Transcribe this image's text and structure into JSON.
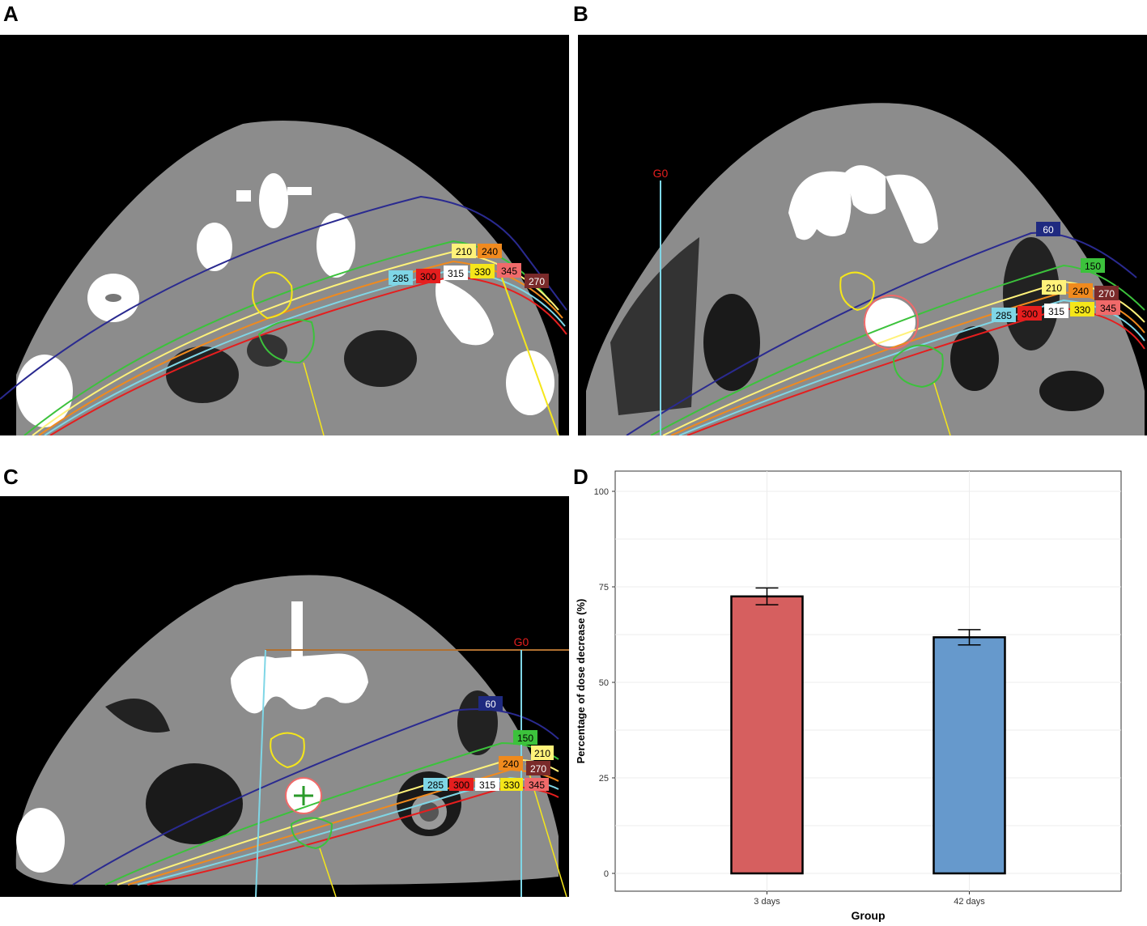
{
  "panels": {
    "a": {
      "letter": "A"
    },
    "b": {
      "letter": "B",
      "gantry_label": "G0"
    },
    "c": {
      "letter": "C",
      "gantry_label": "G0"
    },
    "d": {
      "letter": "D"
    }
  },
  "isodose_colors": {
    "60": "#1f2a80",
    "150": "#3cc23c",
    "210": "#fff27a",
    "240": "#f08a1e",
    "270": "#7a2a2a",
    "285": "#7fd6e6",
    "300": "#e51e1e",
    "315": "#ffffff",
    "330": "#f5e61a",
    "345": "#f06a6a"
  },
  "isodose_labels_a": [
    "210",
    "240",
    "285",
    "300",
    "315",
    "330",
    "345",
    "270"
  ],
  "isodose_labels_b": [
    "60",
    "150",
    "210",
    "240",
    "270",
    "285",
    "300",
    "315",
    "330",
    "345"
  ],
  "isodose_labels_c": [
    "60",
    "150",
    "210",
    "240",
    "270",
    "285",
    "300",
    "315",
    "330",
    "345"
  ],
  "chart_data": {
    "type": "bar",
    "categories": [
      "3 days",
      "42 days"
    ],
    "values": [
      72.5,
      61.8
    ],
    "errors": [
      2.2,
      2.0
    ],
    "colors": [
      "#d65f5f",
      "#6699cc"
    ],
    "title": "",
    "xlabel": "Group",
    "ylabel": "Percentage of dose decrease (%)",
    "ylim": [
      0,
      100
    ],
    "yticks": [
      0,
      25,
      50,
      75,
      100
    ],
    "grid": true,
    "legend": "none"
  }
}
